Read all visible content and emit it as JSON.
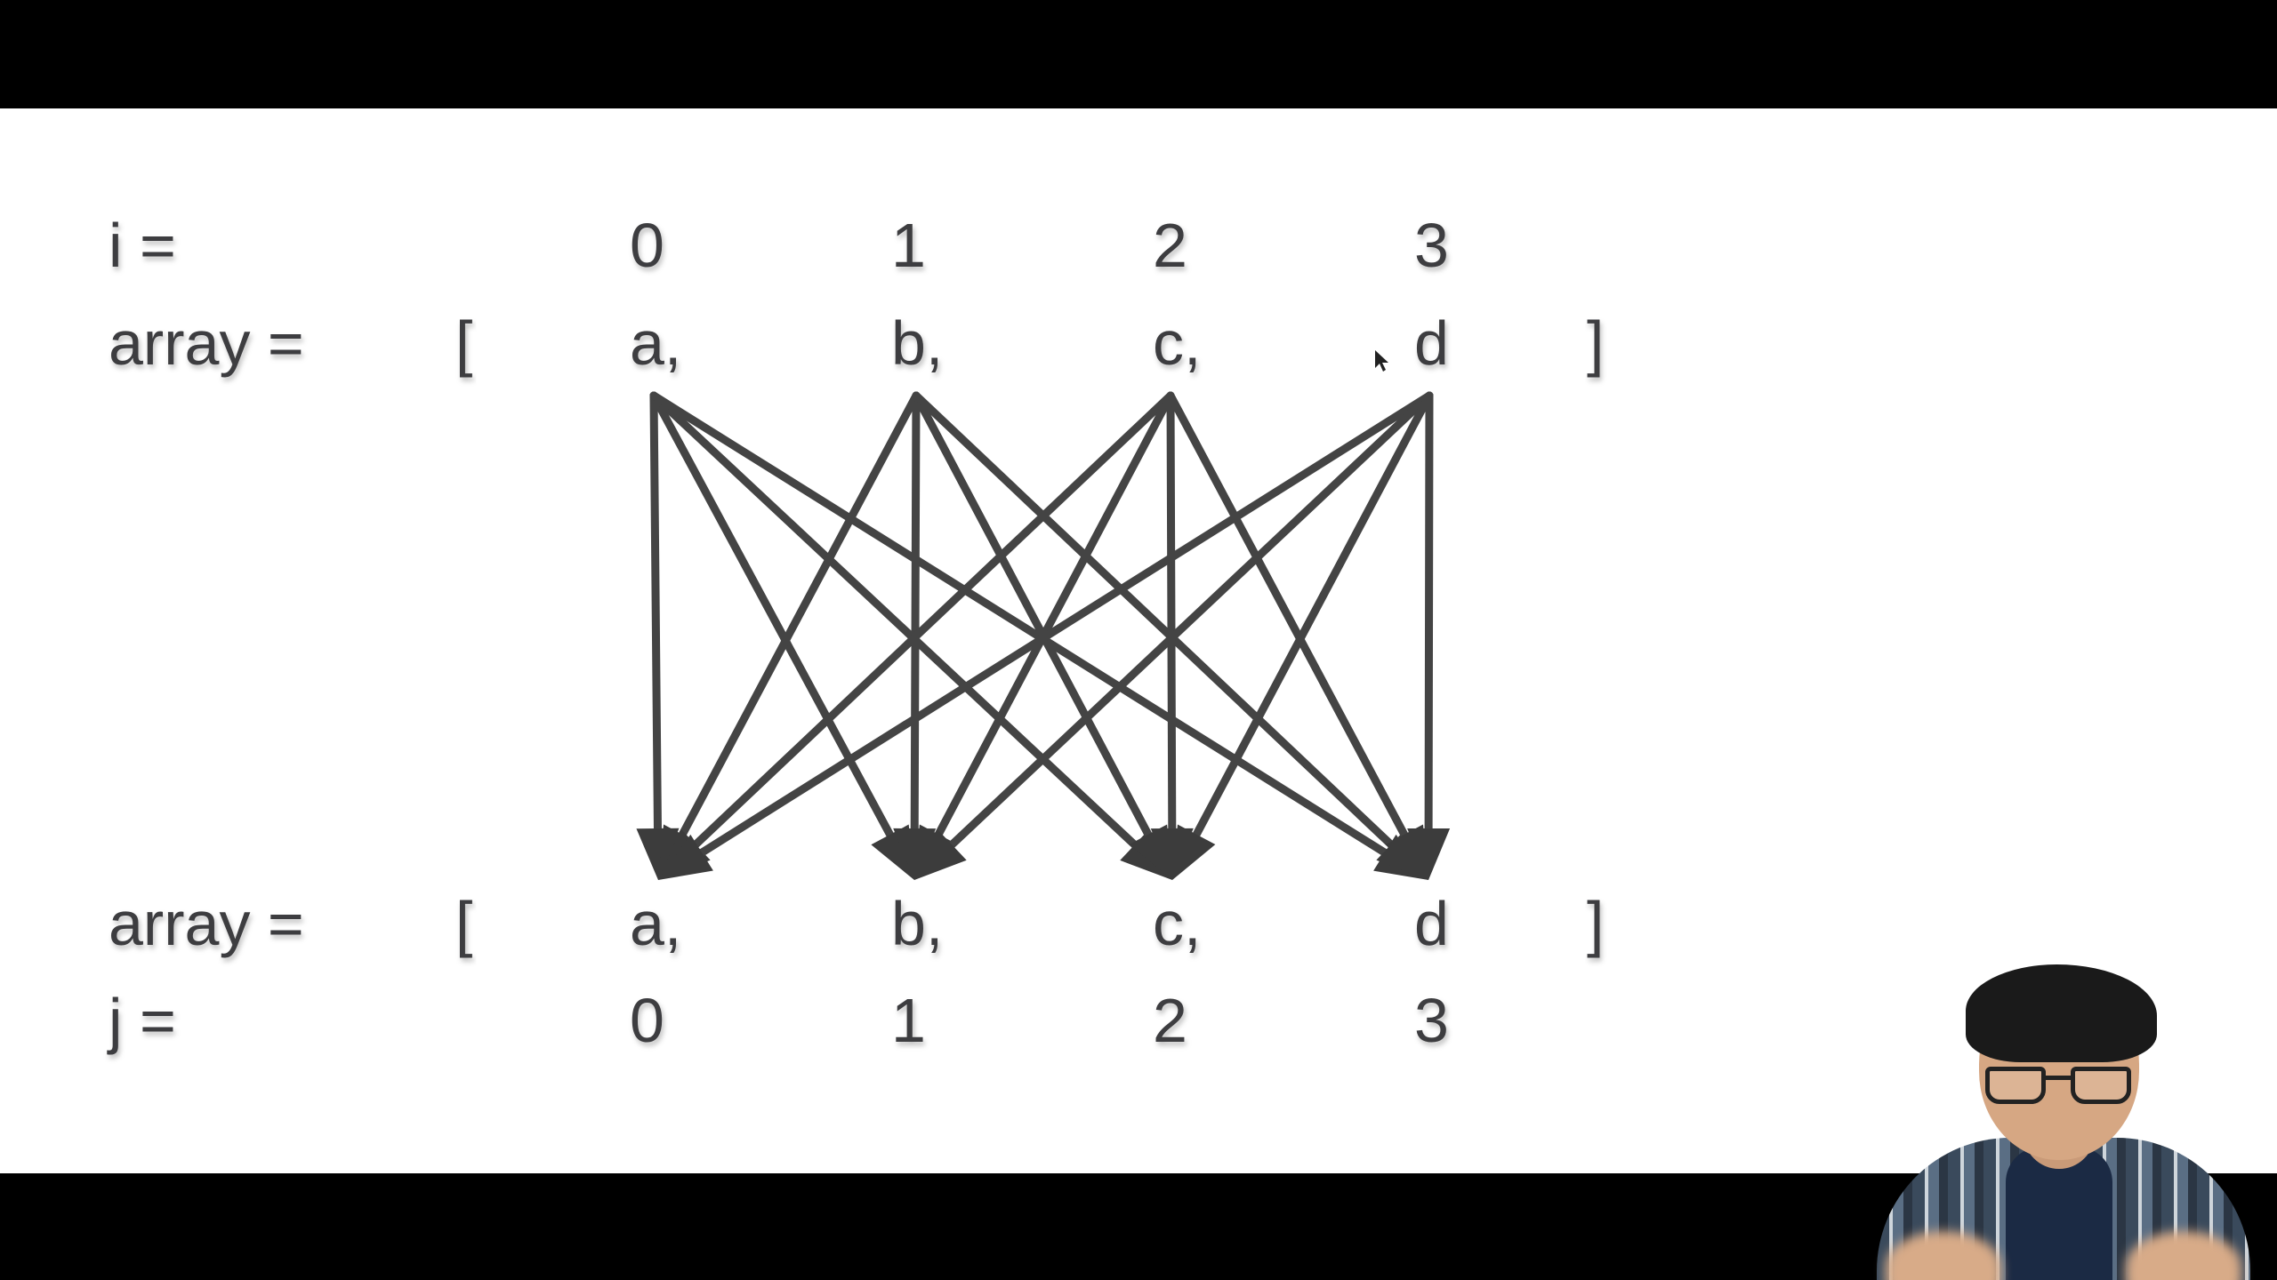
{
  "diagram": {
    "top_index_label": "i =",
    "top_array_label": "array =",
    "bottom_array_label": "array =",
    "bottom_index_label": "j =",
    "open_bracket": "[",
    "close_bracket": "]",
    "top_indices": [
      "0",
      "1",
      "2",
      "3"
    ],
    "top_elements": [
      "a,",
      "b,",
      "c,",
      "d"
    ],
    "bottom_elements": [
      "a,",
      "b,",
      "c,",
      "d"
    ],
    "bottom_indices": [
      "0",
      "1",
      "2",
      "3"
    ],
    "edges": "every top element points to every bottom element"
  },
  "colors": {
    "background": "#ffffff",
    "letterbox": "#000000",
    "text": "#3e3e40",
    "arrows": "#444444"
  },
  "presenter_overlay": {
    "visible": true
  }
}
